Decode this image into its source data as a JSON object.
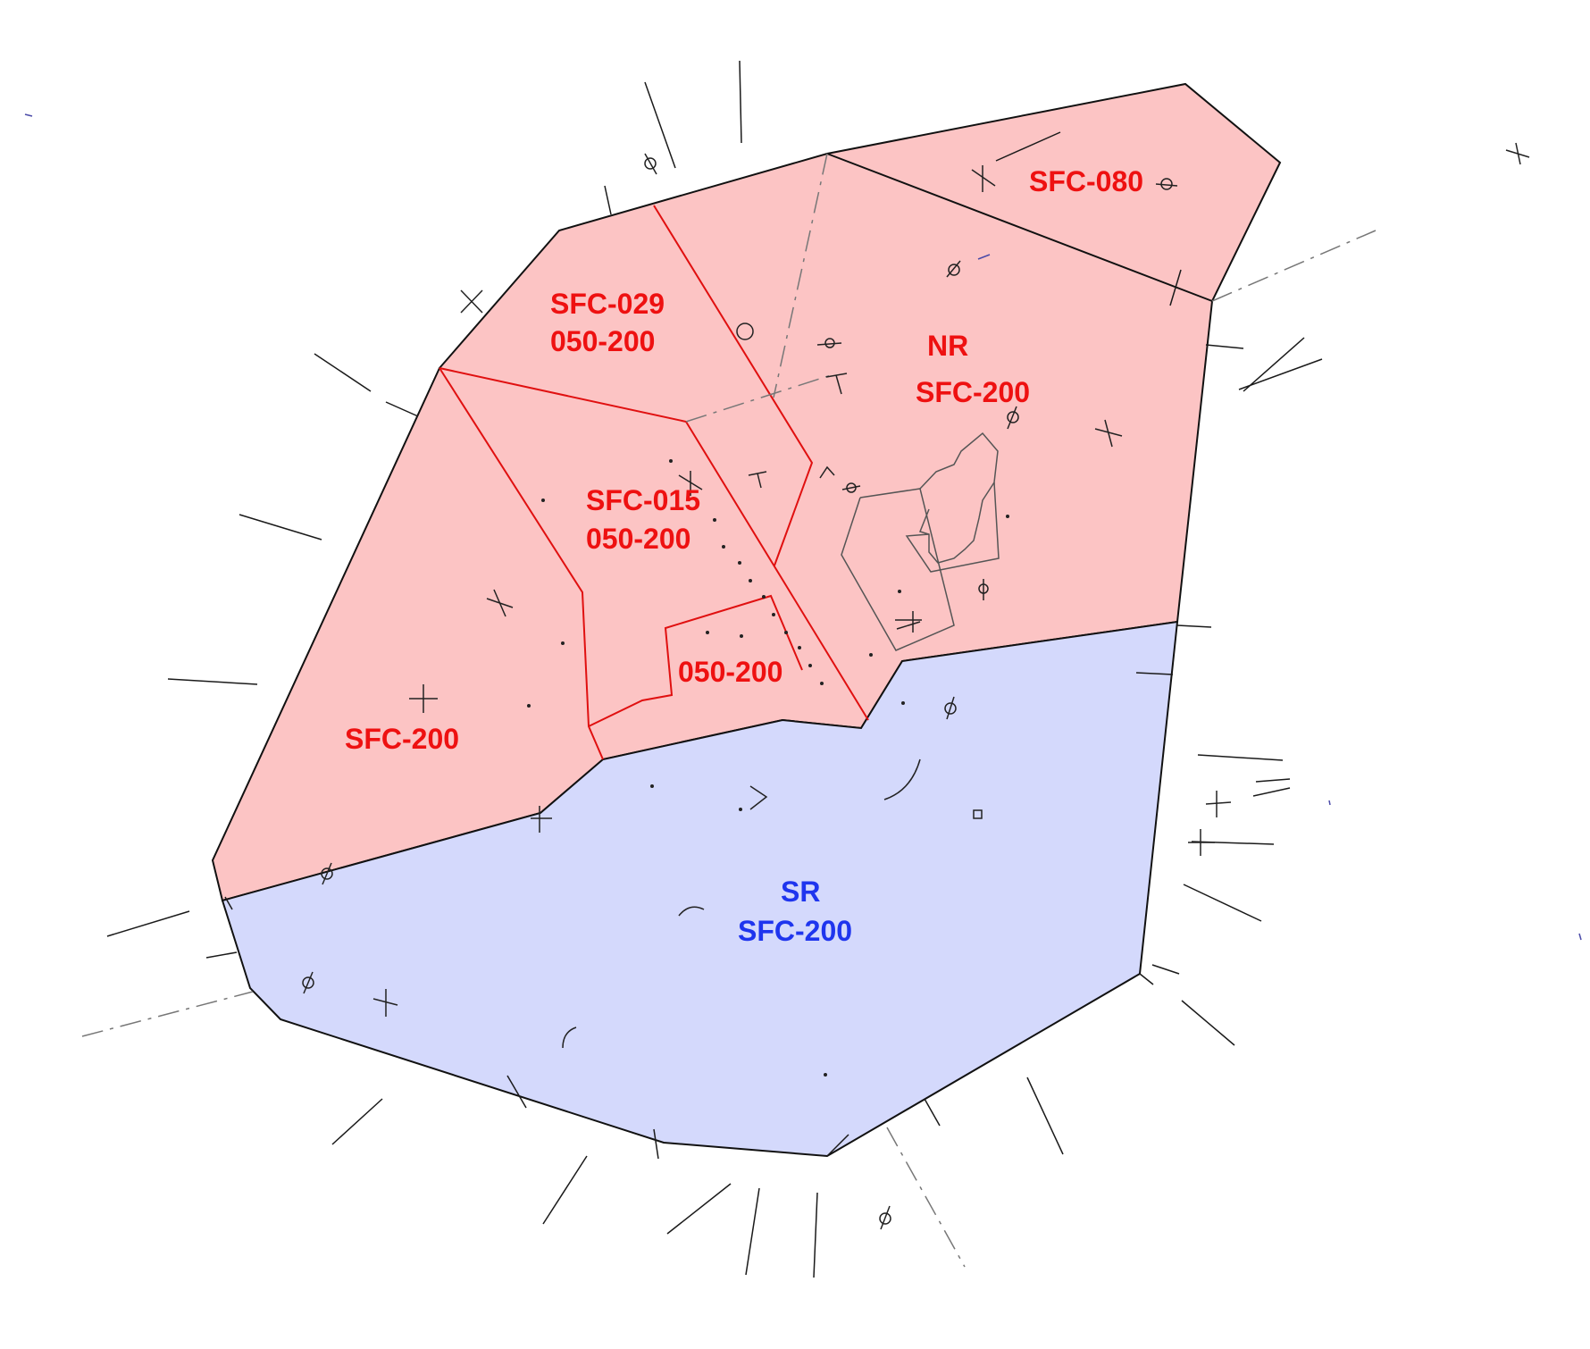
{
  "map": {
    "colors": {
      "north_fill": "#fcc4c4",
      "south_fill": "#d4d9fc",
      "red_line": "#e01010",
      "red_text": "#ee1111",
      "blue_text": "#1f35ee",
      "outline": "#111111"
    },
    "labels": {
      "sfc_080": "SFC-080",
      "sfc_029": "SFC-029",
      "sfc_029_alt": "050-200",
      "nr": "NR",
      "nr_alt": "SFC-200",
      "sfc_015": "SFC-015",
      "sfc_015_alt": "050-200",
      "inner_alt": "050-200",
      "west": "SFC-200",
      "sr": "SR",
      "sr_alt": "SFC-200"
    }
  }
}
